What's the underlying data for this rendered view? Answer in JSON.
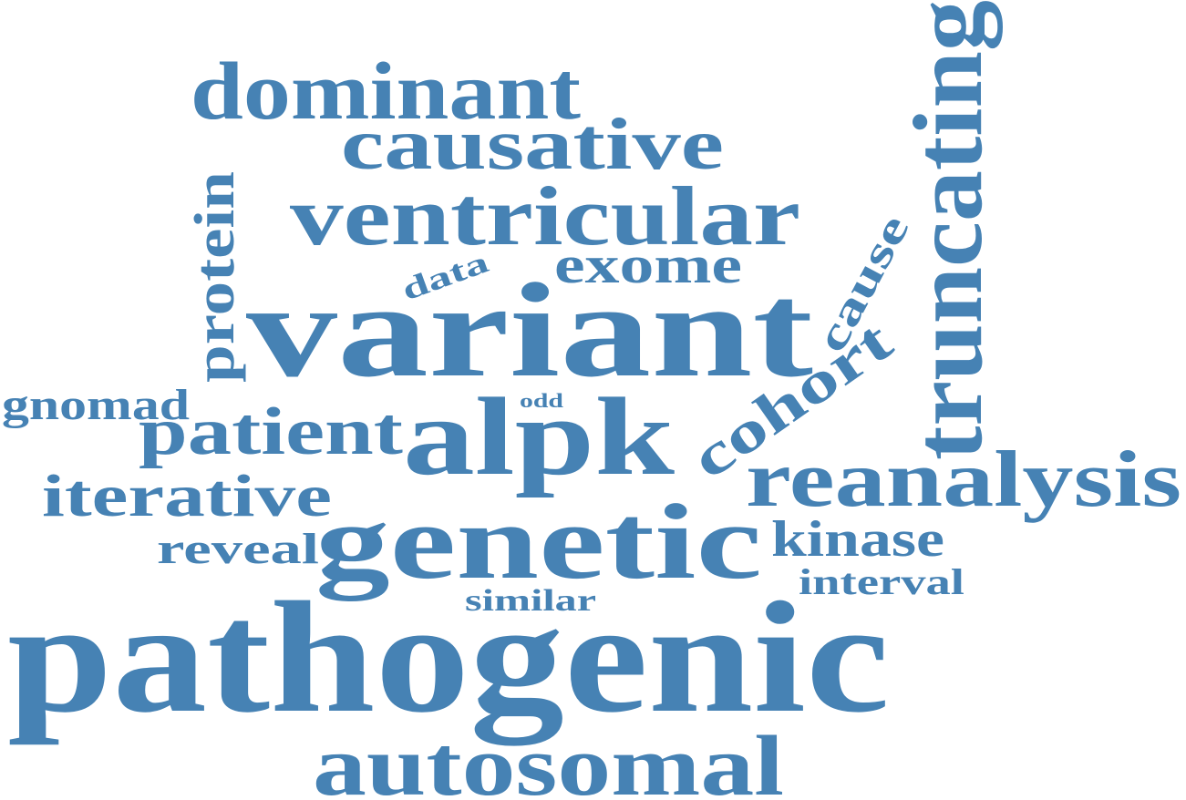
{
  "cloud": {
    "color": "#4682b4",
    "background": "#ffffff",
    "words": {
      "pathogenic": "pathogenic",
      "variant": "variant",
      "genetic": "genetic",
      "alpk": "alpk",
      "autosomal": "autosomal",
      "ventricular": "ventricular",
      "dominant": "dominant",
      "causative": "causative",
      "reanalysis": "reanalysis",
      "truncating": "truncating",
      "patient": "patient",
      "cohort": "cohort",
      "iterative": "iterative",
      "exome": "exome",
      "kinase": "kinase",
      "protein": "protein",
      "gnomad": "gnomad",
      "reveal": "reveal",
      "interval": "interval",
      "cause": "cause",
      "similar": "similar",
      "data": "data",
      "odd": "odd"
    }
  }
}
